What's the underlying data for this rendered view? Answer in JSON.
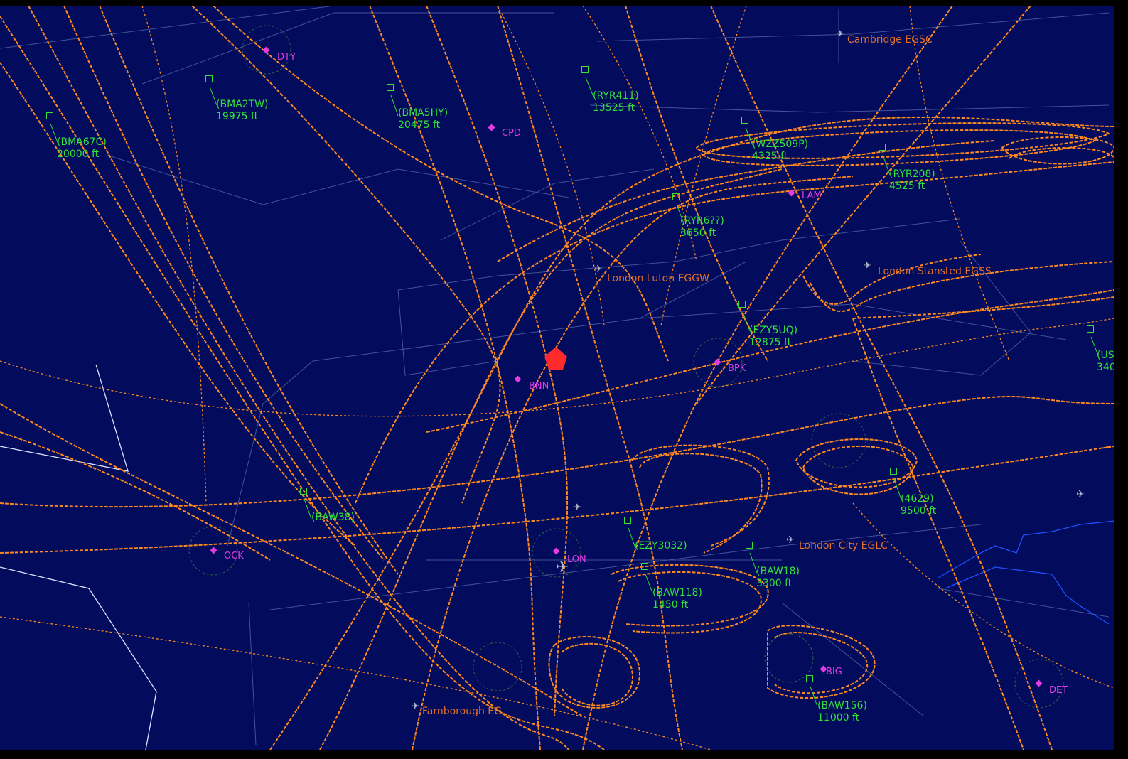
{
  "colors": {
    "background": "#020b5c",
    "tracks": "#ff8a1e",
    "aircraft_labels": "#33e03a",
    "fixes": "#e23ce2",
    "airports": "#e0702a",
    "airspace_lines": "#4a5aa0",
    "target": "#ff2a2a"
  },
  "aircraft": [
    {
      "callsign": "(BMA2TW)",
      "altitude": "19975 ft"
    },
    {
      "callsign": "(BMA5HY)",
      "altitude": "20475 ft"
    },
    {
      "callsign": "(BMA67C)",
      "altitude": "20000 ft"
    },
    {
      "callsign": "(RYR411)",
      "altitude": "13525 ft"
    },
    {
      "callsign": "(WZZ509P)",
      "altitude": "4325 ft"
    },
    {
      "callsign": "(RYR208)",
      "altitude": "4525 ft"
    },
    {
      "callsign": "(RYR6??)",
      "altitude": "3650 ft"
    },
    {
      "callsign": "(EZY5UQ)",
      "altitude": "12875 ft"
    },
    {
      "callsign": "(US",
      "altitude": "340"
    },
    {
      "callsign": "(4629)",
      "altitude": "9500 ft"
    },
    {
      "callsign": "(BAW18)",
      "altitude": "3300 ft"
    },
    {
      "callsign": "(BAW118)",
      "altitude": "1450 ft"
    },
    {
      "callsign": "(EZY3032)",
      "altitude": ""
    },
    {
      "callsign": "(BAW156)",
      "altitude": "11000 ft"
    },
    {
      "callsign": "(BAW38)",
      "altitude": ""
    }
  ],
  "fixes": [
    "DTY",
    "CPD",
    "BNN",
    "BPK",
    "OCK",
    "LON",
    "DET",
    "LAM",
    "BIG"
  ],
  "airports": [
    "Cambridge EGSC",
    "London Luton EGGW",
    "London Stansted EGSS",
    "London City EGLC",
    "Farnborough EG"
  ],
  "icons": [
    "airport-icon",
    "fix-diamond-icon",
    "aircraft-square-icon",
    "target-pentagon-icon"
  ]
}
